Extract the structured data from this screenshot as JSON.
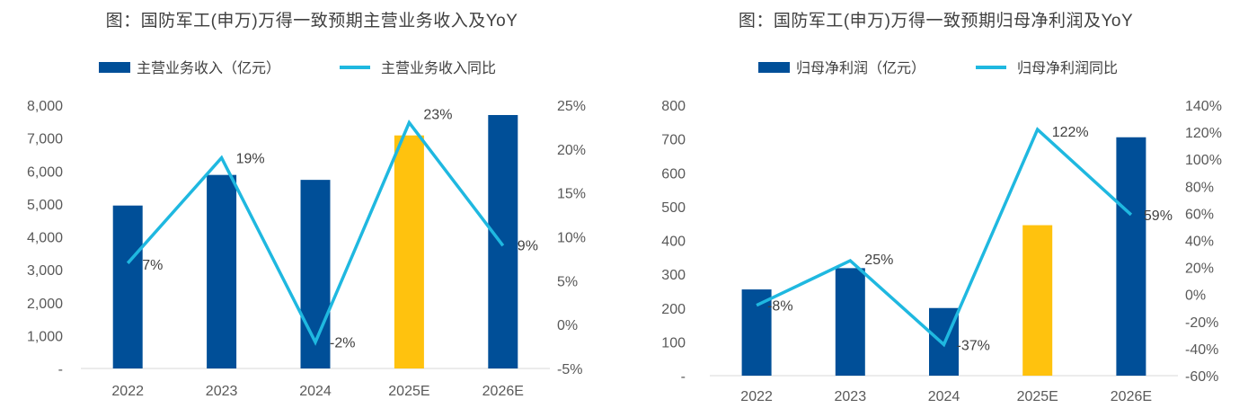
{
  "colors": {
    "bar": "#004F98",
    "bar_estimate": "#FFC20E",
    "line": "#1FB8E0",
    "axis_text": "#595959",
    "label_text": "#404040",
    "baseline": "#D9D9D9"
  },
  "chart_data": [
    {
      "type": "bar+line",
      "title": "图：国防军工(申万)万得一致预期主营业务收入及YoY",
      "categories": [
        "2022",
        "2023",
        "2024",
        "2025E",
        "2026E"
      ],
      "series": [
        {
          "name": "主营业务收入（亿元）",
          "kind": "bar",
          "axis": "left",
          "values": [
            4950,
            5880,
            5730,
            7080,
            7700
          ],
          "highlight_index": 3
        },
        {
          "name": "主营业务收入同比",
          "kind": "line",
          "axis": "right",
          "values": [
            7,
            19,
            -2,
            23,
            9
          ],
          "labels": [
            "7%",
            "19%",
            "-2%",
            "23%",
            "9%"
          ]
        }
      ],
      "left_axis": {
        "ylim": [
          0,
          8000
        ],
        "ticks": [
          0,
          1000,
          2000,
          3000,
          4000,
          5000,
          6000,
          7000,
          8000
        ],
        "tick_labels": [
          "-",
          "1,000",
          "2,000",
          "3,000",
          "4,000",
          "5,000",
          "6,000",
          "7,000",
          "8,000"
        ]
      },
      "right_axis": {
        "ylim": [
          -5,
          25
        ],
        "ticks": [
          -5,
          0,
          5,
          10,
          15,
          20,
          25
        ],
        "tick_labels": [
          "-5%",
          "0%",
          "5%",
          "10%",
          "15%",
          "20%",
          "25%"
        ]
      },
      "legend_position": "top-center"
    },
    {
      "type": "bar+line",
      "title": "图：国防军工(申万)万得一致预期归母净利润及YoY",
      "categories": [
        "2022",
        "2023",
        "2024",
        "2025E",
        "2026E"
      ],
      "series": [
        {
          "name": "归母净利润（亿元）",
          "kind": "bar",
          "axis": "left",
          "values": [
            255,
            318,
            200,
            445,
            705
          ],
          "highlight_index": 3
        },
        {
          "name": "归母净利润同比",
          "kind": "line",
          "axis": "right",
          "values": [
            -8,
            25,
            -37,
            122,
            59
          ],
          "labels": [
            "-8%",
            "25%",
            "-37%",
            "122%",
            "59%"
          ]
        }
      ],
      "left_axis": {
        "ylim": [
          0,
          800
        ],
        "ticks": [
          0,
          100,
          200,
          300,
          400,
          500,
          600,
          700,
          800
        ],
        "tick_labels": [
          "-",
          "100",
          "200",
          "300",
          "400",
          "500",
          "600",
          "700",
          "800"
        ]
      },
      "right_axis": {
        "ylim": [
          -60,
          140
        ],
        "ticks": [
          -60,
          -40,
          -20,
          0,
          20,
          40,
          60,
          80,
          100,
          120,
          140
        ],
        "tick_labels": [
          "-60%",
          "-40%",
          "-20%",
          "0%",
          "20%",
          "40%",
          "60%",
          "80%",
          "100%",
          "120%",
          "140%"
        ]
      },
      "legend_position": "top-center"
    }
  ]
}
